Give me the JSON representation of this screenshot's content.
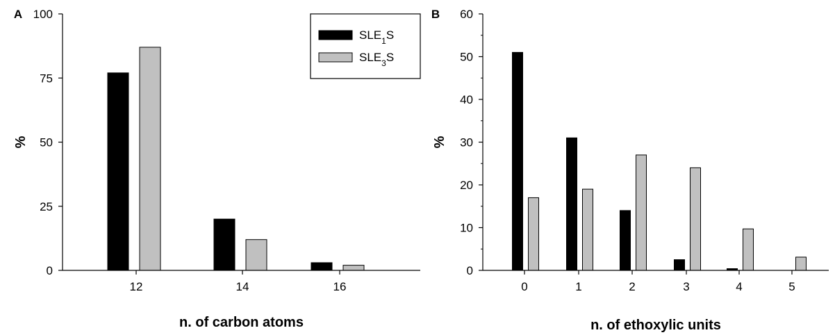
{
  "chart_data": [
    {
      "type": "bar",
      "panel_label": "A",
      "xlabel": "n. of carbon atoms",
      "ylabel": "%",
      "ylim": [
        0,
        100
      ],
      "yticks": [
        "0",
        "25",
        "50",
        "75",
        "100"
      ],
      "categories": [
        "12",
        "14",
        "16"
      ],
      "series": [
        {
          "name": "SLE1S",
          "color": "#000000",
          "values": [
            77,
            20,
            3
          ]
        },
        {
          "name": "SLE3S",
          "color": "#c0c0c0",
          "values": [
            87,
            12,
            2
          ]
        }
      ],
      "legend": {
        "position": "top-right",
        "entries": [
          {
            "base": "SLE",
            "sub": "1",
            "tail": "S",
            "color": "#000000"
          },
          {
            "base": "SLE",
            "sub": "3",
            "tail": "S",
            "color": "#c0c0c0"
          }
        ]
      },
      "grid": false
    },
    {
      "type": "bar",
      "panel_label": "B",
      "xlabel": "n. of ethoxylic units",
      "ylabel": "%",
      "ylim": [
        0,
        60
      ],
      "yticks": [
        "0",
        "10",
        "20",
        "30",
        "40",
        "50",
        "60"
      ],
      "categories": [
        "0",
        "1",
        "2",
        "3",
        "4",
        "5"
      ],
      "series": [
        {
          "name": "SLE1S",
          "color": "#000000",
          "values": [
            51,
            31,
            14,
            2.5,
            0.4,
            0
          ]
        },
        {
          "name": "SLE3S",
          "color": "#c0c0c0",
          "values": [
            17,
            19,
            27,
            24,
            9.7,
            3.1
          ]
        }
      ],
      "grid": false
    }
  ]
}
